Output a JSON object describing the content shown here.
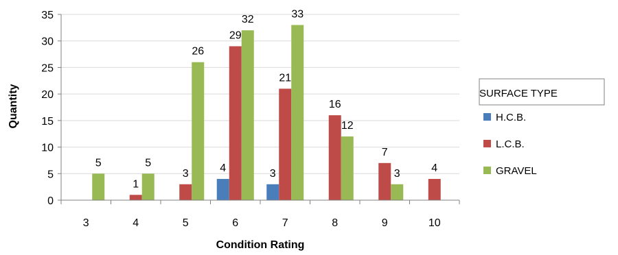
{
  "chart_data": {
    "type": "bar",
    "categories": [
      "3",
      "4",
      "5",
      "6",
      "7",
      "8",
      "9",
      "10"
    ],
    "series": [
      {
        "name": "H.C.B.",
        "color": "#4a7ebb",
        "values": [
          null,
          null,
          null,
          4,
          3,
          null,
          null,
          null
        ]
      },
      {
        "name": "L.C.B.",
        "color": "#be4b48",
        "values": [
          null,
          1,
          3,
          29,
          21,
          16,
          7,
          4
        ]
      },
      {
        "name": "GRAVEL",
        "color": "#98b954",
        "values": [
          5,
          5,
          26,
          32,
          33,
          12,
          3,
          null
        ]
      }
    ],
    "xlabel": "Condition Rating",
    "ylabel": "Quantity",
    "ylim": [
      0,
      35
    ],
    "yticks": [
      0,
      5,
      10,
      15,
      20,
      25,
      30,
      35
    ],
    "grid": true,
    "legend": {
      "title": "SURFACE TYPE",
      "placement": "right"
    }
  }
}
